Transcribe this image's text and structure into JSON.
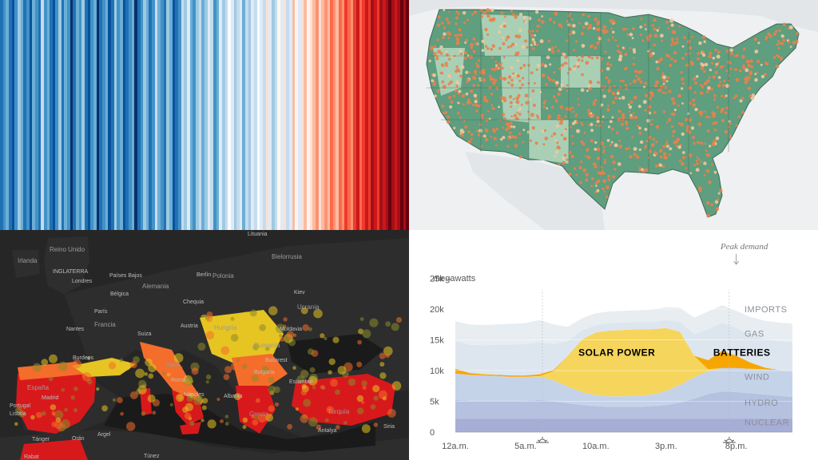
{
  "stripes": {
    "colors": [
      "#2171b5",
      "#4292c6",
      "#6baed6",
      "#2171b5",
      "#08519c",
      "#4292c6",
      "#9ecae1",
      "#6baed6",
      "#2171b5",
      "#4292c6",
      "#08519c",
      "#6baed6",
      "#4292c6",
      "#2171b5",
      "#c6dbef",
      "#4292c6",
      "#6baed6",
      "#2171b5",
      "#08519c",
      "#4292c6",
      "#9ecae1",
      "#2171b5",
      "#6baed6",
      "#4292c6",
      "#08306b",
      "#2171b5",
      "#6baed6",
      "#4292c6",
      "#9ecae1",
      "#2171b5",
      "#08519c",
      "#4292c6",
      "#6baed6",
      "#08306b",
      "#2171b5",
      "#4292c6",
      "#6baed6",
      "#08519c",
      "#2171b5",
      "#9ecae1",
      "#4292c6",
      "#6baed6",
      "#08519c",
      "#2171b5",
      "#4292c6",
      "#6baed6",
      "#08306b",
      "#2171b5",
      "#4292c6",
      "#9ecae1",
      "#6baed6",
      "#2171b5",
      "#4292c6",
      "#c6dbef",
      "#6baed6",
      "#4292c6",
      "#2171b5",
      "#9ecae1",
      "#6baed6",
      "#08519c",
      "#2171b5",
      "#4292c6",
      "#c6dbef",
      "#9ecae1",
      "#deebf7",
      "#6baed6",
      "#4292c6",
      "#9ecae1",
      "#c6dbef",
      "#6baed6",
      "#9ecae1",
      "#deebf7",
      "#c6dbef",
      "#4292c6",
      "#6baed6",
      "#deebf7",
      "#9ecae1",
      "#c6dbef",
      "#f7fbff",
      "#deebf7",
      "#9ecae1",
      "#c6dbef",
      "#deebf7",
      "#6baed6",
      "#c6dbef",
      "#9ecae1",
      "#deebf7",
      "#c6dbef",
      "#f7fbff",
      "#deebf7",
      "#c6dbef",
      "#fee0d2",
      "#deebf7",
      "#9ecae1",
      "#c6dbef",
      "#fff5f0",
      "#deebf7",
      "#fee0d2",
      "#c6dbef",
      "#deebf7",
      "#fcbba1",
      "#fff5f0",
      "#deebf7",
      "#fee0d2",
      "#fcbba1",
      "#fff5f0",
      "#fee0d2",
      "#fcbba1",
      "#fc9272",
      "#fee0d2",
      "#fcbba1",
      "#fc9272",
      "#fcbba1",
      "#fb6a4a",
      "#fc9272",
      "#fcbba1",
      "#fb6a4a",
      "#fc9272",
      "#ef3b2c",
      "#fb6a4a",
      "#fc9272",
      "#ef3b2c",
      "#cb181d",
      "#fb6a4a",
      "#ef3b2c",
      "#cb181d",
      "#ef3b2c",
      "#a50f15",
      "#cb181d",
      "#ef3b2c",
      "#a50f15",
      "#cb181d",
      "#a50f15",
      "#67000d",
      "#a50f15",
      "#cb181d",
      "#a50f15",
      "#67000d",
      "#a50f15",
      "#67000d"
    ]
  },
  "us_map": {
    "background": "#eef0f2",
    "state_fill": "#5f9e7e",
    "light_fill": "#a9d0b5",
    "dot_color": "#e8814c",
    "dot_alt_color": "#f0c9a0",
    "border_color": "#3f6a58"
  },
  "europe_map": {
    "labels": {
      "reino_unido": "Reino Unido",
      "irlanda": "Irlanda",
      "inglaterra": "INGLATERRA",
      "londres": "Londres",
      "paises_bajos": "Países Bajos",
      "belgica": "Bélgica",
      "alemania": "Alemania",
      "berlin": "Berlín",
      "polonia": "Polonia",
      "lituania": "Lituania",
      "bielorrusia": "Bielorrusia",
      "kiev": "Kiev",
      "ucrania": "Ucrania",
      "paris": "París",
      "francia": "Francia",
      "chequia": "Chequia",
      "austria": "Austria",
      "suiza": "Suiza",
      "hungria": "Hungría",
      "moldavia": "Moldavia",
      "rumania": "Rumanía",
      "bucarest": "Bucarest",
      "bulgaria": "Bulgaria",
      "italia": "Italia",
      "roma": "Roma",
      "napoles": "Nápoles",
      "albania": "Albania",
      "grecia": "Grecia",
      "estambul": "Estambul",
      "turquia": "Turquía",
      "antalya": "Antalya",
      "espana": "España",
      "madrid": "Madrid",
      "portugal": "Portugal",
      "lisboa": "Lisboa",
      "argel": "Argel",
      "oran": "Orán",
      "tanger": "Tánger",
      "tunez": "Túnez",
      "siria": "Siria",
      "rabat": "Rabat",
      "nantes": "Nantes",
      "burdeos": "Burdeos"
    },
    "colors": {
      "background": "#1f1f1f",
      "land": "#2b2b2b",
      "sea": "#161616",
      "red": "#d7191c",
      "orange": "#f46d2a",
      "yellow": "#e6c422",
      "olive": "#8a8a2a"
    }
  },
  "energy_chart": {
    "chart_data": {
      "type": "area",
      "ylabel": "megawatts",
      "y_ticks": [
        "25k –",
        "20k",
        "15k",
        "10k",
        "5k",
        "0"
      ],
      "y_tick_values": [
        25000,
        20000,
        15000,
        10000,
        5000,
        0
      ],
      "ylim": [
        0,
        27000
      ],
      "x_ticks": [
        "12a.m.",
        "5a.m.",
        "10a.m.",
        "3p.m.",
        "8p.m."
      ],
      "x_tick_hours": [
        0,
        5,
        10,
        15,
        20
      ],
      "xlim": [
        0,
        24
      ],
      "hours": [
        0,
        1,
        2,
        3,
        4,
        5,
        6,
        7,
        8,
        9,
        10,
        11,
        12,
        13,
        14,
        15,
        16,
        17,
        18,
        19,
        20,
        21,
        22,
        23,
        24
      ],
      "series": [
        {
          "name": "NUCLEAR",
          "color": "#a7aed6",
          "values": [
            2200,
            2200,
            2200,
            2200,
            2200,
            2200,
            2200,
            2200,
            2200,
            2200,
            2200,
            2200,
            2200,
            2200,
            2200,
            2200,
            2200,
            2200,
            2200,
            2200,
            2200,
            2200,
            2200,
            2200,
            2200
          ]
        },
        {
          "name": "HYDRO",
          "color": "#b5c1df",
          "values": [
            3000,
            2900,
            2900,
            2900,
            2900,
            2900,
            3000,
            2800,
            2500,
            2200,
            2000,
            1900,
            1900,
            1900,
            2000,
            2200,
            2600,
            3200,
            4000,
            4400,
            4300,
            4100,
            3900,
            3700,
            3500
          ]
        },
        {
          "name": "WIND",
          "color": "#c5d3e9",
          "values": [
            4300,
            4200,
            4100,
            4000,
            3900,
            3900,
            3800,
            3400,
            2700,
            2100,
            1800,
            1700,
            1700,
            1800,
            1900,
            2300,
            2900,
            3500,
            3700,
            3800,
            3900,
            4000,
            4100,
            4200,
            4200
          ]
        },
        {
          "name": "SOLAR POWER",
          "color": "#f6d55c",
          "values": [
            0,
            0,
            0,
            0,
            0,
            0,
            100,
            1500,
            5000,
            8500,
            10200,
            10700,
            10800,
            10800,
            10600,
            10200,
            8600,
            3500,
            300,
            0,
            0,
            0,
            0,
            0,
            0
          ]
        },
        {
          "name": "BATTERIES",
          "color": "#f7a600",
          "values": [
            800,
            300,
            200,
            200,
            200,
            200,
            300,
            200,
            0,
            0,
            0,
            0,
            0,
            0,
            0,
            0,
            0,
            0,
            1500,
            2800,
            2000,
            1000,
            300,
            0,
            0
          ]
        },
        {
          "name": "GAS",
          "color": "#dde6ee",
          "values": [
            4500,
            4600,
            4700,
            4900,
            5000,
            5100,
            5200,
            4200,
            2400,
            1500,
            1200,
            1200,
            1200,
            1200,
            1200,
            1300,
            1600,
            3500,
            5000,
            4600,
            4500,
            4500,
            4600,
            4700,
            4700
          ]
        },
        {
          "name": "IMPORTS",
          "color": "#e7edf1",
          "values": [
            3200,
            3300,
            3300,
            3300,
            3400,
            3400,
            3600,
            3200,
            2300,
            2000,
            1900,
            1900,
            1900,
            1900,
            2000,
            2100,
            2300,
            2700,
            2900,
            2800,
            2800,
            2900,
            3000,
            3000,
            3000
          ]
        }
      ],
      "series_labels": {
        "nuclear": "NUCLEAR",
        "hydro": "HYDRO",
        "wind": "WIND",
        "solar": "SOLAR POWER",
        "batteries": "BATTERIES",
        "gas": "GAS",
        "imports": "IMPORTS"
      },
      "annotations": [
        {
          "text": "Peak demand",
          "hour": 20
        }
      ],
      "icons": [
        "sunrise-icon",
        "sunset-icon"
      ],
      "legend": "inline",
      "grid": true
    }
  }
}
